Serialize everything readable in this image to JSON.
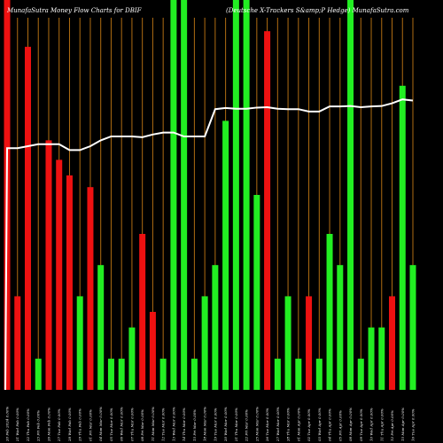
{
  "header": {
    "left_title": "MunafaSutra  Money Flow  Charts for DBIF",
    "right_title": "(Deutsche   X-Trackers S&amp;P Hedge)  MunafaSutra.com"
  },
  "chart_data": {
    "type": "bar",
    "title": "MunafaSutra  Money Flow  Charts for DBIF",
    "subtitle": "(Deutsche   X-Trackers S&amp;P Hedge)  MunafaSutra.com",
    "ylim": [
      0,
      100
    ],
    "grid": true,
    "colors": {
      "up": "#22ee22",
      "down": "#ee1111",
      "line": "#ffffff",
      "grid": "#b06d12",
      "background": "#000000"
    },
    "categories": [
      "20 Feb 2024 0.00%",
      "21 Wed Feb 0.00%",
      "22 Thu Feb 0.00%",
      "23 Fri Feb 0.00%",
      "26 Mon Feb 0.00%",
      "27 Tue Feb 0.00%",
      "28 Wed Feb 0.00%",
      "29 Thu Feb 0.00%",
      "01 Fri Mar 0.00%",
      "04 Mon Mar 0.00%",
      "05 Tue Mar 0.00%",
      "06 Wed Mar 0.00%",
      "07 Thu Mar 0.00%",
      "08 Fri Mar 0.00%",
      "11 Mon Mar 0.00%",
      "12 Tue Mar 0.00%",
      "13 Wed Mar 0.00%",
      "14 Thu Mar 0.00%",
      "15 Fri Mar 0.00%",
      "18 Mon Mar 0.00%",
      "19 Tue Mar 0.00%",
      "20 Wed Mar 0.00%",
      "21 Thu Mar 0.00%",
      "22 Fri Mar 0.00%",
      "25 Mon Mar 0.00%",
      "26 Tue Mar 0.00%",
      "27 Wed Mar 0.00%",
      "28 Thu Mar 0.00%",
      "01 Mon Apr 0.00%",
      "02 Tue Apr 0.00%",
      "03 Wed Apr 0.00%",
      "04 Thu Apr 0.00%",
      "05 Fri Apr 0.00%",
      "08 Mon Apr 0.00%",
      "09 Tue Apr 0.00%",
      "10 Wed Apr 0.00%",
      "11 Thu Apr 0.00%",
      "12 Fri Apr 0.00%",
      "15 Mon Apr 0.00%",
      "16 Tue Apr 0.00%"
    ],
    "values": [
      100,
      24,
      88,
      8,
      64,
      59,
      55,
      24,
      52,
      32,
      8,
      8,
      16,
      40,
      20,
      8,
      100,
      100,
      8,
      24,
      32,
      69,
      100,
      100,
      50,
      92,
      8,
      24,
      8,
      24,
      8,
      40,
      32,
      100,
      8,
      16,
      16,
      24,
      78,
      32
    ],
    "directions": [
      "down",
      "down",
      "down",
      "up",
      "down",
      "down",
      "down",
      "up",
      "down",
      "up",
      "up",
      "up",
      "up",
      "down",
      "down",
      "up",
      "up",
      "up",
      "up",
      "up",
      "up",
      "up",
      "up",
      "up",
      "up",
      "down",
      "up",
      "up",
      "up",
      "down",
      "up",
      "up",
      "up",
      "up",
      "up",
      "up",
      "up",
      "down",
      "up",
      "up"
    ],
    "line": [
      62,
      62,
      62.5,
      63,
      63,
      63,
      61.5,
      61.5,
      62.5,
      64,
      65,
      65,
      65,
      64.8,
      65.5,
      66,
      66,
      65,
      65,
      65,
      72,
      72.3,
      72.1,
      72.1,
      72.4,
      72.5,
      72.1,
      72,
      72,
      71.4,
      71.4,
      72.7,
      72.7,
      72.8,
      72.5,
      72.7,
      72.8,
      73.5,
      74.5,
      74.2
    ]
  }
}
